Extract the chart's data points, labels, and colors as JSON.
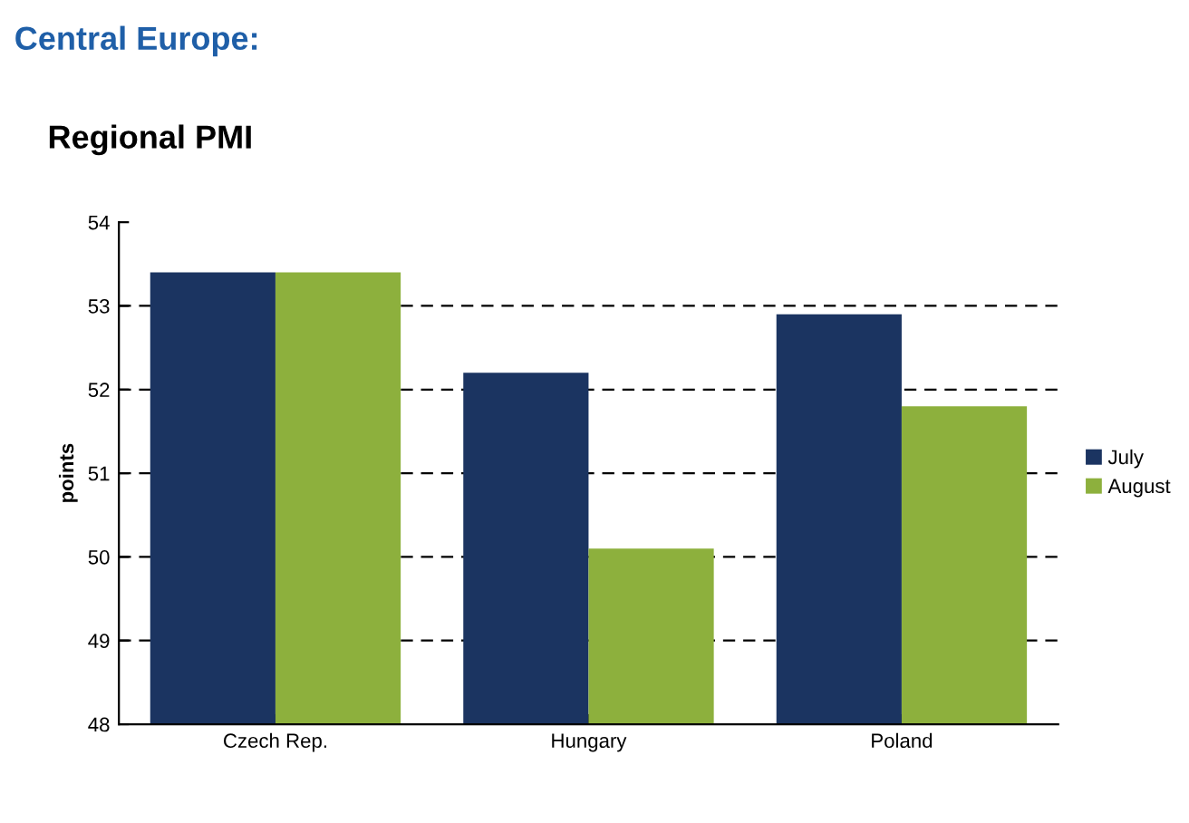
{
  "chart_data": {
    "type": "bar",
    "title": "Central Europe:",
    "subtitle": "Regional PMI",
    "ylabel": "points",
    "categories": [
      "Czech Rep.",
      "Hungary",
      "Poland"
    ],
    "series": [
      {
        "name": "July",
        "color": "#1b3461",
        "values": [
          53.4,
          52.2,
          52.9
        ]
      },
      {
        "name": "August",
        "color": "#8db03d",
        "values": [
          53.4,
          50.1,
          51.8
        ]
      }
    ],
    "ylim": [
      48,
      54
    ],
    "yticks": [
      48,
      49,
      50,
      51,
      52,
      53,
      54
    ],
    "grid": "y",
    "line_style": "dashed",
    "legend": "right"
  }
}
